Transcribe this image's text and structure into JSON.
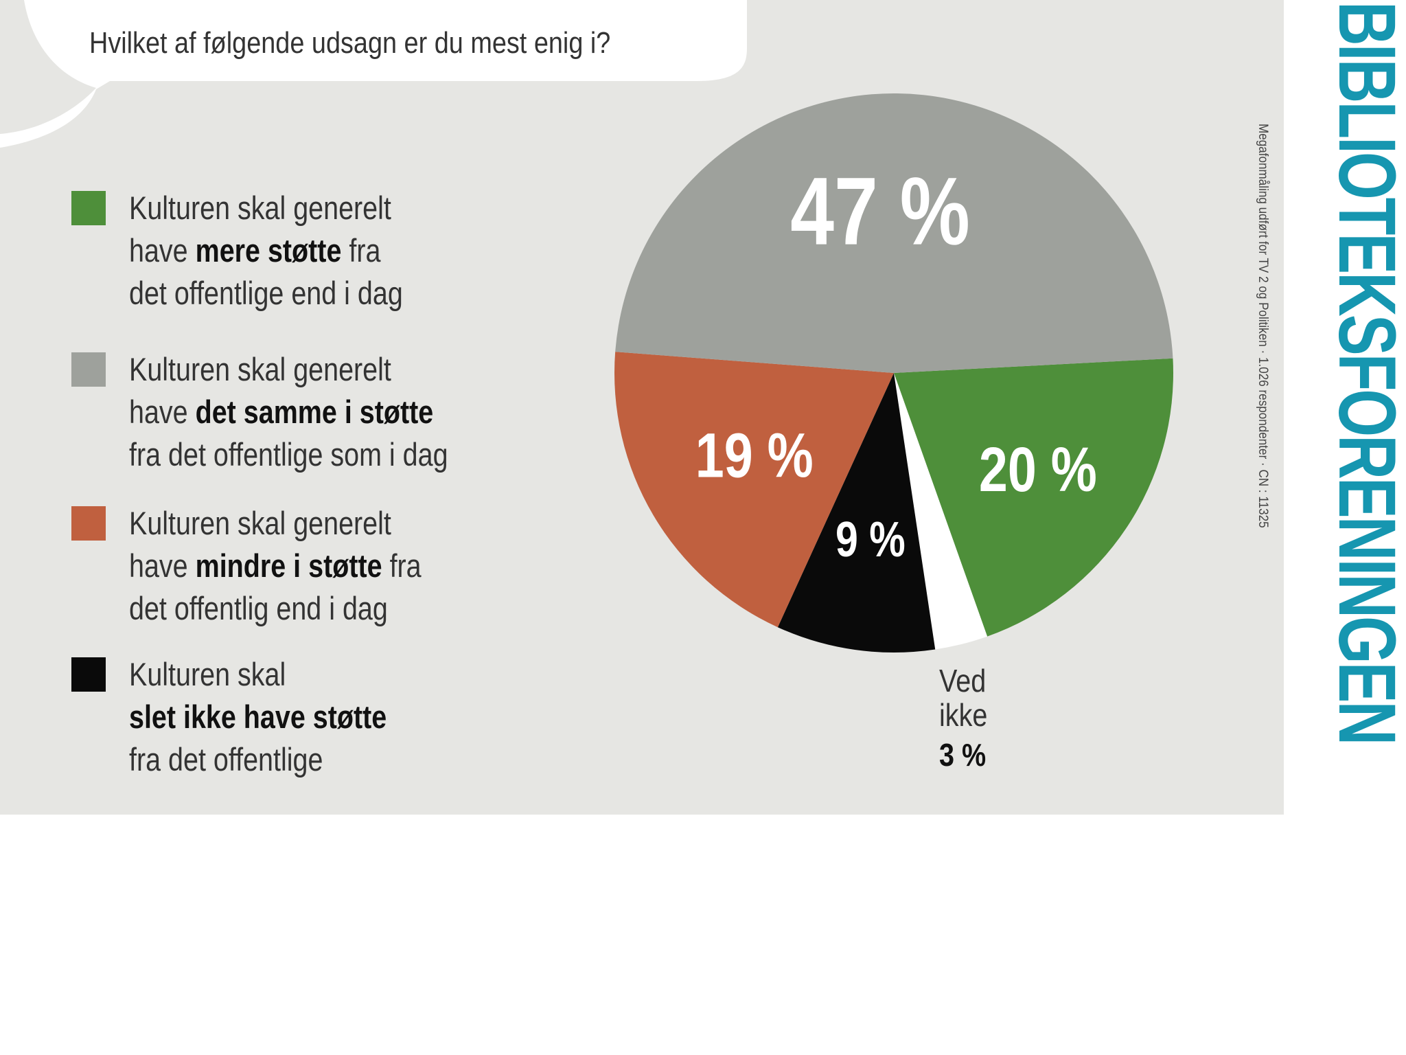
{
  "question": "Hvilket af følgende udsagn er du mest enig i?",
  "legend": [
    {
      "color": "#4e8f3a",
      "lines": [
        [
          {
            "t": "Kulturen skal generelt",
            "b": false
          }
        ],
        [
          {
            "t": "have ",
            "b": false
          },
          {
            "t": "mere støtte",
            "b": true
          },
          {
            "t": " fra",
            "b": false
          }
        ],
        [
          {
            "t": "det offentlige end i dag",
            "b": false
          }
        ]
      ]
    },
    {
      "color": "#9ea19c",
      "lines": [
        [
          {
            "t": "Kulturen skal generelt",
            "b": false
          }
        ],
        [
          {
            "t": "have ",
            "b": false
          },
          {
            "t": "det samme i støtte",
            "b": true
          }
        ],
        [
          {
            "t": "fra det offentlige som i dag",
            "b": false
          }
        ]
      ]
    },
    {
      "color": "#c0603f",
      "lines": [
        [
          {
            "t": "Kulturen skal generelt",
            "b": false
          }
        ],
        [
          {
            "t": "have ",
            "b": false
          },
          {
            "t": "mindre i støtte",
            "b": true
          },
          {
            "t": " fra",
            "b": false
          }
        ],
        [
          {
            "t": "det offentlig end i dag",
            "b": false
          }
        ]
      ]
    },
    {
      "color": "#0a0a0a",
      "lines": [
        [
          {
            "t": "Kulturen skal",
            "b": false
          }
        ],
        [
          {
            "t": "slet ikke have støtte",
            "b": true
          }
        ],
        [
          {
            "t": "fra det offentlige",
            "b": false
          }
        ]
      ]
    }
  ],
  "chart_data": {
    "type": "pie",
    "title": "",
    "slices": [
      {
        "label": "Kulturen skal generelt have mere støtte fra det offentlige end i dag",
        "value": 20,
        "display": "20 %",
        "color": "#4e8f3a"
      },
      {
        "label": "Ved ikke",
        "value": 3,
        "display": "",
        "color": "#ffffff"
      },
      {
        "label": "Kulturen skal slet ikke have støtte fra det offentlige",
        "value": 9,
        "display": "9 %",
        "color": "#0a0a0a"
      },
      {
        "label": "Kulturen skal generelt have mindre i støtte fra det offentlig end i dag",
        "value": 19,
        "display": "19 %",
        "color": "#c0603f"
      },
      {
        "label": "Kulturen skal generelt have det samme i støtte fra det offentlige som i dag",
        "value": 47,
        "display": "47 %",
        "color": "#9ea19c"
      }
    ],
    "legend_position": "left"
  },
  "vedikke": {
    "line1": "Ved",
    "line2": "ikke",
    "value": "3 %"
  },
  "source": "Megafonmåling udført for TV 2 og Politiken · 1.026 respondenter · CN : 11325",
  "brand": "BIBLIOTEKSFORENINGEN",
  "colors": {
    "panel": "#e6e6e3",
    "brand": "#1696b0"
  }
}
